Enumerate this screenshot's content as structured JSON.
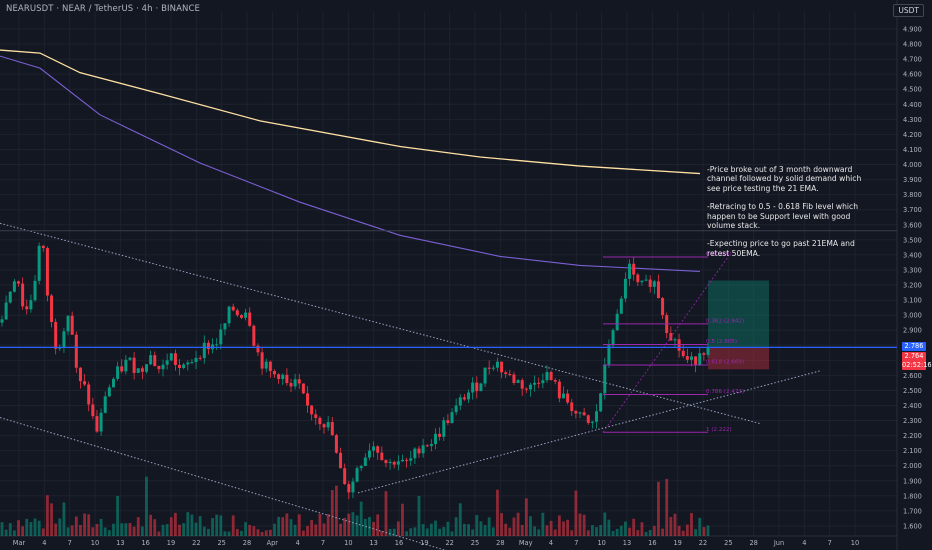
{
  "header": {
    "symbol_line": "NEARUSDT · NEAR / TetherUS · 4h · BINANCE",
    "currency": "USDT"
  },
  "annotations": [
    "-Price broke out of 3 month downward channel followed by solid demand which see price testing the 21 EMA.",
    "-Retracing to 0.5 - 0.618 Fib level which happen to be Support level with good volume stack.",
    "-Expecting price to go past 21EMA and retest 50EMA."
  ],
  "price_tags": {
    "last": "2.786",
    "last_color": "#2962ff",
    "bar": "2.764",
    "countdown": "02:52:16",
    "bar_color": "#f23645"
  },
  "colors": {
    "up": "#089981",
    "down": "#f23645",
    "ema_long": "#ffe0a3",
    "ema_mid": "#7b5fd4",
    "fib": "#9c27b0",
    "hline": "#2962ff",
    "channel": "#9aa4c4"
  },
  "chart_data": {
    "type": "candlestick",
    "y_axis": {
      "min": 1.55,
      "max": 4.95,
      "ticks": [
        "4.900",
        "4.800",
        "4.700",
        "4.600",
        "4.500",
        "4.400",
        "4.300",
        "4.200",
        "4.100",
        "4.000",
        "3.900",
        "3.800",
        "3.700",
        "3.600",
        "3.500",
        "3.400",
        "3.300",
        "3.200",
        "3.100",
        "3.000",
        "2.900",
        "2.800",
        "2.700",
        "2.600",
        "2.500",
        "2.400",
        "2.300",
        "2.200",
        "2.100",
        "2.000",
        "1.900",
        "1.800",
        "1.700",
        "1.600"
      ]
    },
    "x_axis": {
      "labels": [
        "Mar",
        "4",
        "7",
        "10",
        "13",
        "16",
        "19",
        "22",
        "25",
        "28",
        "Apr",
        "4",
        "7",
        "10",
        "13",
        "16",
        "19",
        "22",
        "25",
        "28",
        "May",
        "4",
        "7",
        "10",
        "13",
        "16",
        "19",
        "22",
        "25",
        "28",
        "Jun",
        "4",
        "7",
        "10"
      ]
    },
    "price_path": [
      [
        0,
        2.95
      ],
      [
        4,
        3.3
      ],
      [
        6,
        3.0
      ],
      [
        8,
        3.15
      ],
      [
        10,
        3.55
      ],
      [
        12,
        3.0
      ],
      [
        14,
        2.75
      ],
      [
        15,
        2.9
      ],
      [
        17,
        3.05
      ],
      [
        18,
        2.7
      ],
      [
        19,
        2.55
      ],
      [
        21,
        2.5
      ],
      [
        22,
        2.35
      ],
      [
        24,
        2.2
      ],
      [
        25,
        2.45
      ],
      [
        28,
        2.6
      ],
      [
        31,
        2.7
      ],
      [
        34,
        2.62
      ],
      [
        36,
        2.75
      ],
      [
        39,
        2.62
      ],
      [
        41,
        2.75
      ],
      [
        44,
        2.62
      ],
      [
        47,
        2.72
      ],
      [
        50,
        2.8
      ],
      [
        52,
        2.8
      ],
      [
        54,
        2.9
      ],
      [
        56,
        3.05
      ],
      [
        58,
        3.0
      ],
      [
        60,
        3.05
      ],
      [
        61,
        2.88
      ],
      [
        63,
        2.7
      ],
      [
        66,
        2.6
      ],
      [
        68,
        2.62
      ],
      [
        70,
        2.5
      ],
      [
        72,
        2.55
      ],
      [
        74,
        2.4
      ],
      [
        76,
        2.35
      ],
      [
        78,
        2.3
      ],
      [
        80,
        2.25
      ],
      [
        81,
        2.15
      ],
      [
        82,
        1.98
      ],
      [
        84,
        1.88
      ],
      [
        85,
        1.8
      ],
      [
        86,
        1.98
      ],
      [
        88,
        2.05
      ],
      [
        90,
        2.15
      ],
      [
        92,
        2.1
      ],
      [
        94,
        2.0
      ],
      [
        96,
        2.05
      ],
      [
        98,
        2.0
      ],
      [
        100,
        2.05
      ],
      [
        102,
        2.15
      ],
      [
        104,
        2.15
      ],
      [
        106,
        2.2
      ],
      [
        108,
        2.3
      ],
      [
        110,
        2.35
      ],
      [
        112,
        2.45
      ],
      [
        114,
        2.5
      ],
      [
        116,
        2.55
      ],
      [
        118,
        2.65
      ],
      [
        120,
        2.7
      ],
      [
        122,
        2.62
      ],
      [
        124,
        2.58
      ],
      [
        126,
        2.55
      ],
      [
        128,
        2.5
      ],
      [
        130,
        2.57
      ],
      [
        132,
        2.62
      ],
      [
        134,
        2.55
      ],
      [
        136,
        2.45
      ],
      [
        138,
        2.42
      ],
      [
        140,
        2.32
      ],
      [
        142,
        2.3
      ],
      [
        143,
        2.25
      ],
      [
        144,
        2.3
      ],
      [
        146,
        2.55
      ],
      [
        147,
        2.72
      ],
      [
        148,
        2.9
      ],
      [
        150,
        3.0
      ],
      [
        152,
        3.35
      ],
      [
        154,
        3.2
      ],
      [
        156,
        3.18
      ],
      [
        158,
        3.25
      ],
      [
        160,
        3.1
      ],
      [
        161,
        2.95
      ],
      [
        162,
        2.9
      ],
      [
        164,
        2.8
      ],
      [
        166,
        2.7
      ],
      [
        168,
        2.68
      ],
      [
        170,
        2.8
      ],
      [
        171,
        2.76
      ]
    ],
    "bar_count": 172,
    "ema_long": [
      [
        0,
        4.76
      ],
      [
        40,
        4.74
      ],
      [
        80,
        4.61
      ],
      [
        160,
        4.47
      ],
      [
        260,
        4.29
      ],
      [
        400,
        4.12
      ],
      [
        480,
        4.05
      ],
      [
        580,
        3.99
      ],
      [
        700,
        3.94
      ]
    ],
    "ema_mid": [
      [
        0,
        4.72
      ],
      [
        40,
        4.64
      ],
      [
        100,
        4.33
      ],
      [
        200,
        4.01
      ],
      [
        300,
        3.75
      ],
      [
        400,
        3.53
      ],
      [
        500,
        3.39
      ],
      [
        580,
        3.33
      ],
      [
        700,
        3.29
      ]
    ],
    "channel_upper": [
      [
        0,
        3.61
      ],
      [
        760,
        2.28
      ]
    ],
    "channel_lower": [
      [
        0,
        2.32
      ],
      [
        470,
        1.39
      ]
    ],
    "trendline_up": [
      [
        358,
        1.82
      ],
      [
        820,
        2.63
      ]
    ],
    "horizontal_level": 2.786,
    "upper_line": 3.56,
    "fib_levels": [
      {
        "ratio": "0",
        "label": "0 (3.386)",
        "value": 3.386
      },
      {
        "ratio": "0.382",
        "label": "0.382 (2.942)",
        "value": 2.942
      },
      {
        "ratio": "0.5",
        "label": "0.5 (2.805)",
        "value": 2.805
      },
      {
        "ratio": "0.618",
        "label": "0.618 (2.669)",
        "value": 2.669
      },
      {
        "ratio": "0.786",
        "label": "0.786 (2.473)",
        "value": 2.473
      },
      {
        "ratio": "1",
        "label": "1 (2.222)",
        "value": 2.222
      }
    ],
    "position": {
      "entry": 2.786,
      "target": 3.23,
      "stop": 2.64
    }
  }
}
